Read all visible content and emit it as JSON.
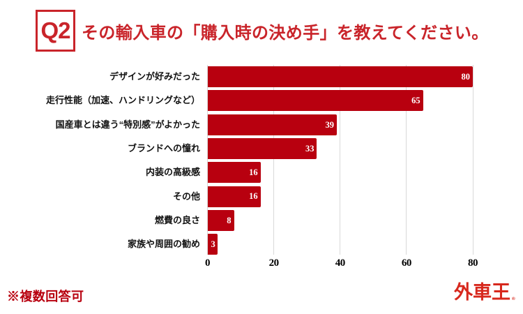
{
  "header": {
    "question_label": "Q2",
    "title": "その輸入車の「購入時の決め手」を教えてください。"
  },
  "chart_data": {
    "type": "bar",
    "orientation": "horizontal",
    "categories": [
      "デザインが好みだった",
      "走行性能（加速、ハンドリングなど）",
      "国産車とは違う“特別感”がよかった",
      "ブランドへの憧れ",
      "内装の高級感",
      "その他",
      "燃費の良さ",
      "家族や周囲の勧め"
    ],
    "values": [
      80,
      65,
      39,
      33,
      16,
      16,
      8,
      3
    ],
    "xticks": [
      0,
      20,
      40,
      60,
      80
    ],
    "xlim": [
      0,
      80
    ],
    "bar_color": "#b8000f",
    "gridline_color": "#d9d9d9",
    "value_label_color": "#ffffff",
    "grid": "vertical",
    "legend": "none",
    "title": "その輸入車の「購入時の決め手」を教えてください。"
  },
  "footer": {
    "note": "※複数回答可",
    "logo_text": "外車王",
    "logo_mark": "®"
  },
  "colors": {
    "accent_red": "#c9242a",
    "bar_red": "#b8000f",
    "logo_red": "#d7281d"
  }
}
